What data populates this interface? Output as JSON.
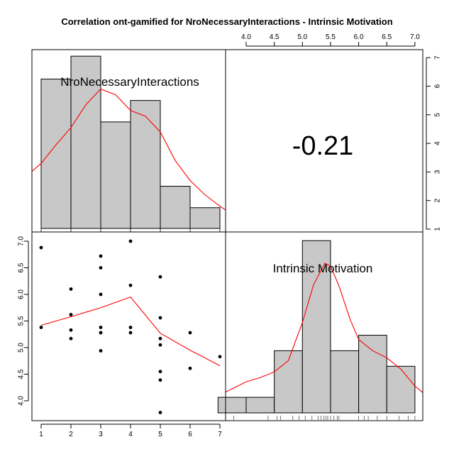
{
  "title": "Correlation ont-gamified for NroNecessaryInteractions - Intrinsic Motivation",
  "chart_data": {
    "type": "scatter",
    "title": "Correlation ont-gamified for NroNecessaryInteractions - Intrinsic Motivation",
    "variables": [
      "NroNecessaryInteractions",
      "Intrinsic Motivation"
    ],
    "correlation": "-0.21",
    "x_ticks": [
      "1",
      "2",
      "3",
      "4",
      "5",
      "6",
      "7"
    ],
    "y_ticks": [
      "4.0",
      "4.5",
      "5.0",
      "5.5",
      "6.0",
      "6.5",
      "7.0"
    ],
    "top_ticks": [
      "4.0",
      "4.5",
      "5.0",
      "5.5",
      "6.0",
      "6.5",
      "7.0"
    ],
    "right_ticks": [
      "1",
      "2",
      "3",
      "4",
      "5",
      "6",
      "7"
    ],
    "xlim": [
      0.9,
      7.3
    ],
    "ylim": [
      3.7,
      7.1
    ],
    "scatter": {
      "x": [
        1,
        1,
        2,
        2,
        2,
        2,
        3,
        3,
        3,
        3,
        3,
        3,
        4,
        4,
        4,
        4,
        5,
        5,
        5,
        5,
        5,
        5,
        5,
        6,
        6,
        7
      ],
      "y": [
        6.88,
        5.38,
        6.1,
        5.62,
        5.33,
        5.17,
        6.72,
        6.5,
        6.0,
        5.38,
        5.28,
        4.94,
        7.0,
        6.17,
        5.38,
        5.28,
        6.33,
        5.56,
        5.17,
        5.05,
        4.55,
        4.39,
        3.78,
        5.28,
        4.61,
        4.83
      ],
      "smooth_x": [
        1,
        2,
        3,
        4,
        5,
        6,
        7
      ],
      "smooth_y": [
        5.42,
        5.58,
        5.75,
        5.95,
        5.27,
        4.95,
        4.66
      ]
    },
    "hist_x": {
      "breaks": [
        1,
        2,
        3,
        4,
        5,
        6,
        7
      ],
      "heights": [
        6.25,
        7.05,
        4.75,
        5.5,
        2.5,
        1.75
      ],
      "density_x": [
        0.0,
        0.5,
        1.0,
        1.5,
        2.0,
        2.5,
        3.0,
        3.5,
        4.0,
        4.5,
        5.0,
        5.5,
        6.0,
        6.5,
        7.0,
        7.3
      ],
      "density_y": [
        2.4,
        2.85,
        3.3,
        3.95,
        4.55,
        5.35,
        5.9,
        5.7,
        5.15,
        4.95,
        4.4,
        3.4,
        2.7,
        2.2,
        1.8,
        1.6
      ]
    },
    "hist_y": {
      "breaks": [
        3.5,
        4.0,
        4.5,
        5.0,
        5.5,
        6.0,
        6.5,
        7.0
      ],
      "heights": [
        0.55,
        0.55,
        2.2,
        6.1,
        2.2,
        2.75,
        1.65
      ],
      "density_x": [
        3.45,
        3.75,
        4.0,
        4.25,
        4.5,
        4.75,
        5.0,
        5.2,
        5.4,
        5.5,
        5.65,
        5.85,
        6.0,
        6.25,
        6.5,
        6.75,
        7.0,
        7.15
      ],
      "density_y": [
        0.55,
        0.85,
        1.1,
        1.25,
        1.45,
        1.85,
        3.2,
        4.55,
        5.3,
        5.2,
        4.5,
        3.3,
        2.6,
        2.2,
        1.95,
        1.55,
        0.95,
        0.7
      ],
      "rug": [
        3.78,
        4.39,
        4.55,
        4.61,
        4.83,
        4.94,
        5.05,
        5.17,
        5.28,
        5.33,
        5.38,
        5.42,
        5.45,
        5.5,
        5.56,
        5.62,
        5.65,
        6.0,
        6.1,
        6.17,
        6.33,
        6.5,
        6.72,
        6.88,
        7.0
      ]
    },
    "colors": {
      "bar_fill": "#c8c8c8",
      "bar_stroke": "#000000",
      "density_line": "#ff0000",
      "smooth_line": "#ff0000",
      "points": "#000000"
    }
  }
}
